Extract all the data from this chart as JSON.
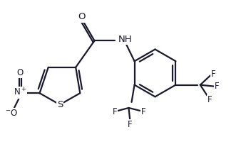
{
  "bg_color": "#ffffff",
  "line_color": "#1a1a2e",
  "line_width": 1.6,
  "font_size": 8.5,
  "xlim": [
    0,
    1.55
  ],
  "ylim": [
    0,
    1.1
  ]
}
